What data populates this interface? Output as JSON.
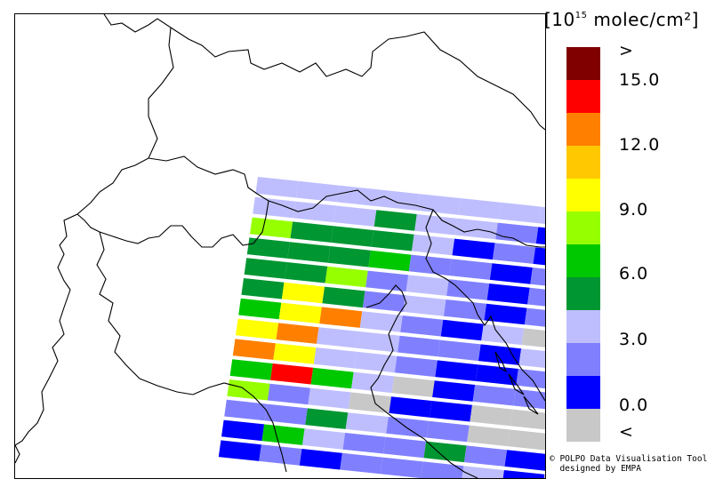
{
  "legend": {
    "unit_prefix": "[10",
    "unit_exponent": "15",
    "unit_suffix": " molec/cm²]",
    "colors": [
      "#800000",
      "#ff0000",
      "#ff8000",
      "#ffc800",
      "#ffff00",
      "#96ff00",
      "#00c800",
      "#009632",
      "#bebeff",
      "#8080ff",
      "#0000ff",
      "#c8c8c8"
    ],
    "labels": [
      ">",
      "15.0",
      "12.0",
      "9.0",
      "6.0",
      "3.0",
      "0.0",
      "<"
    ]
  },
  "credit": {
    "line1": "© POLPO Data Visualisation Tool",
    "line2": "  designed by EMPA"
  },
  "swath": {
    "colors": {
      "D": "#0000ff",
      "M": "#8080ff",
      "L": "#bebeff",
      "G": "#009632",
      "g": "#00c800",
      "Y": "#96ff00",
      "y": "#ffff00",
      "o": "#ffc800",
      "O": "#ff8000",
      "R": "#ff0000",
      "N": "#c8c8c8"
    },
    "rows": [
      "LLLLLLLLL",
      "LLLGLLMDM",
      "YGGGLDMDM",
      "GGGgMMDMN",
      "GGYMLMDMN",
      "GyGMLMDMD",
      "gyOLMDLND",
      "yOLLMMDLN",
      "OyLLMDDMM",
      "gRgLNDMMN",
      "YMLNDDNNN",
      "MMGLMMNNN",
      "DgLMMGMDN",
      "DMDMMMLDN"
    ]
  }
}
